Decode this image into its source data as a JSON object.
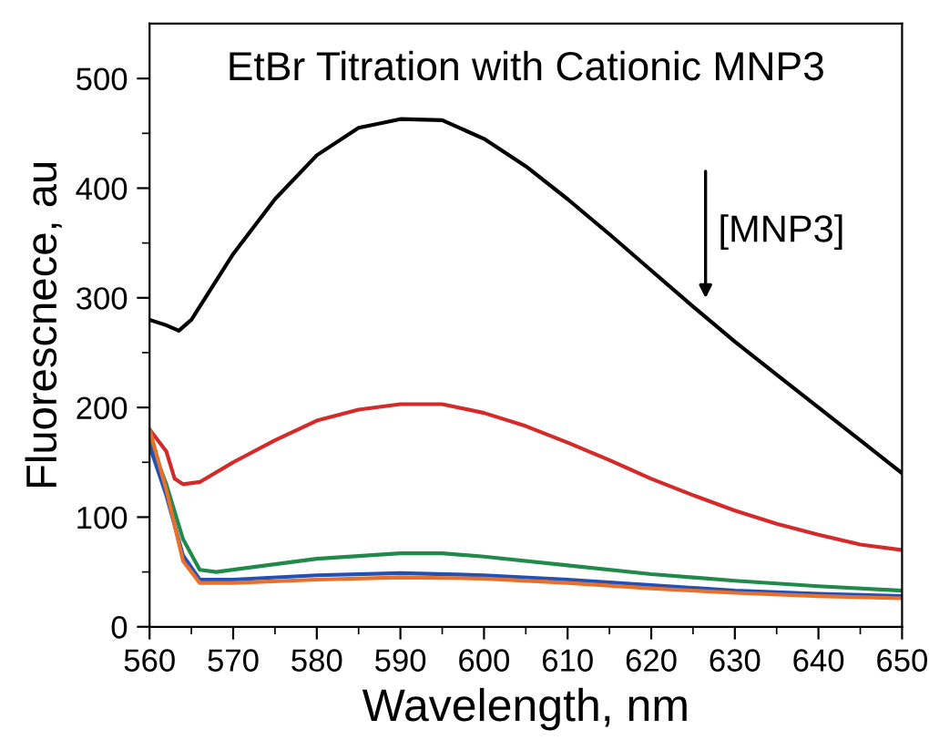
{
  "chart_data": {
    "type": "line",
    "title": "EtBr Titration with Cationic MNP3",
    "xlabel": "Wavelength, nm",
    "ylabel": "Fluorescnece, au",
    "annotations": [
      "[MNP3]"
    ],
    "xlim": [
      560,
      650
    ],
    "ylim": [
      0,
      550
    ],
    "xticks": [
      560,
      {
        "value": 565,
        "label": null
      },
      570,
      {
        "value": 575,
        "label": null
      },
      580,
      {
        "value": 585,
        "label": null
      },
      590,
      {
        "value": 595,
        "label": null
      },
      600,
      {
        "value": 605,
        "label": null
      },
      610,
      {
        "value": 615,
        "label": null
      },
      620,
      {
        "value": 625,
        "label": null
      },
      630,
      {
        "value": 635,
        "label": null
      },
      640,
      {
        "value": 645,
        "label": null
      },
      650
    ],
    "yticks": [
      0,
      {
        "value": 50,
        "label": null
      },
      100,
      {
        "value": 150,
        "label": null
      },
      200,
      {
        "value": 250,
        "label": null
      },
      300,
      {
        "value": 350,
        "label": null
      },
      400,
      {
        "value": 450,
        "label": null
      },
      500
    ],
    "grid": false,
    "legend": false,
    "marker": "none",
    "line_style": "solid",
    "series": [
      {
        "color": "#000000",
        "x": [
          560,
          562,
          563.5,
          565,
          570,
          575,
          580,
          585,
          590,
          595,
          600,
          605,
          610,
          615,
          620,
          625,
          630,
          635,
          640,
          645,
          650
        ],
        "values": [
          280,
          275,
          270,
          280,
          340,
          390,
          430,
          455,
          463,
          462,
          445,
          420,
          390,
          358,
          325,
          292,
          260,
          230,
          200,
          170,
          140
        ]
      },
      {
        "color": "#d42a2a",
        "x": [
          560,
          562,
          563,
          564,
          566,
          570,
          575,
          580,
          585,
          590,
          595,
          600,
          605,
          610,
          615,
          620,
          625,
          630,
          635,
          640,
          645,
          650
        ],
        "values": [
          180,
          160,
          135,
          130,
          132,
          150,
          170,
          188,
          198,
          203,
          203,
          195,
          183,
          168,
          152,
          135,
          120,
          106,
          94,
          84,
          75,
          70
        ]
      },
      {
        "color": "#1f8a4a",
        "x": [
          560,
          562,
          564,
          566,
          568,
          575,
          580,
          590,
          595,
          600,
          610,
          620,
          630,
          640,
          650
        ],
        "values": [
          170,
          130,
          80,
          52,
          50,
          57,
          62,
          67,
          67,
          64,
          56,
          48,
          42,
          37,
          33
        ]
      },
      {
        "color": "#2050b8",
        "x": [
          560,
          562,
          564,
          566,
          570,
          580,
          590,
          600,
          610,
          620,
          630,
          640,
          650
        ],
        "values": [
          165,
          120,
          65,
          43,
          43,
          47,
          49,
          47,
          43,
          38,
          33,
          30,
          28
        ]
      },
      {
        "color": "#e8702a",
        "x": [
          560,
          562,
          564,
          566,
          570,
          580,
          590,
          600,
          610,
          620,
          630,
          640,
          650
        ],
        "values": [
          180,
          125,
          60,
          40,
          40,
          43,
          45,
          44,
          40,
          35,
          31,
          28,
          26
        ]
      }
    ]
  }
}
